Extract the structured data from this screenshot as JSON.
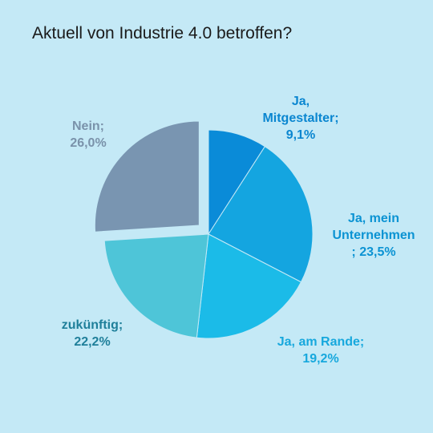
{
  "chart_data": {
    "type": "pie",
    "title": "Aktuell von Industrie 4.0 betroffen?",
    "slices": [
      {
        "label": "Ja,\nMitgestalter;\n9,1%",
        "value": 9.1,
        "color": "#0a8bd8",
        "label_color": "#0a86d0"
      },
      {
        "label": "Ja, mein\nUnternehmen\n; 23,5%",
        "value": 23.5,
        "color": "#14a5e0",
        "label_color": "#0b93d3"
      },
      {
        "label": "Ja, am Rande;\n19,2%",
        "value": 19.2,
        "color": "#1bbbe8",
        "label_color": "#17a8dd"
      },
      {
        "label": "zukünftig;\n22,2%",
        "value": 22.2,
        "color": "#4ec5d8",
        "label_color": "#1f7f9a"
      },
      {
        "label": "Nein;\n26,0%",
        "value": 26.0,
        "color": "#7995b1",
        "label_color": "#7a92aa",
        "exploded": true
      }
    ],
    "legend": "none"
  }
}
